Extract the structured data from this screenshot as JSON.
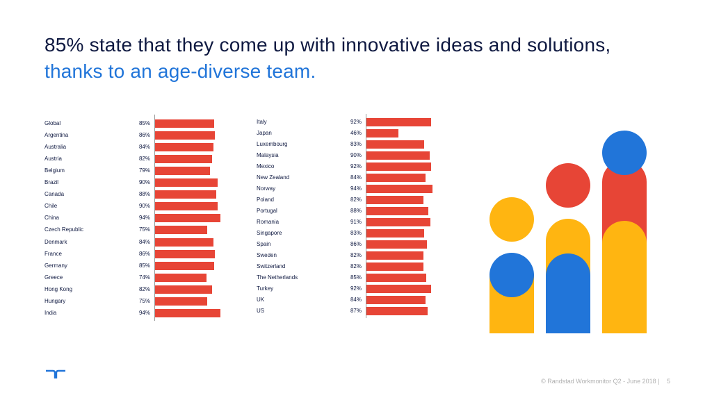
{
  "title": {
    "main": "85% state that they come up with innovative ideas and solutions,",
    "accent": "thanks to an age-diverse team."
  },
  "colors": {
    "bar": "#e74536",
    "title": "#0f1941",
    "accent": "#2175d9",
    "yellow": "#ffb511",
    "red": "#e74536",
    "blue": "#2175d9",
    "footer": "#b0b0b0"
  },
  "chart_data": [
    {
      "type": "bar",
      "orientation": "horizontal",
      "categories": [
        "Global",
        "Argentina",
        "Australia",
        "Austria",
        "Belgium",
        "Brazil",
        "Canada",
        "Chile",
        "China",
        "Czech Republic",
        "Denmark",
        "France",
        "Germany",
        "Greece",
        "Hong Kong",
        "Hungary",
        "India"
      ],
      "values": [
        85,
        86,
        84,
        82,
        79,
        90,
        88,
        90,
        94,
        75,
        84,
        86,
        85,
        74,
        82,
        75,
        94
      ],
      "value_labels": [
        "85%",
        "86%",
        "84%",
        "82%",
        "79%",
        "90%",
        "88%",
        "90%",
        "94%",
        "75%",
        "84%",
        "86%",
        "85%",
        "74%",
        "82%",
        "75%",
        "94%"
      ],
      "xlim": [
        0,
        100
      ]
    },
    {
      "type": "bar",
      "orientation": "horizontal",
      "categories": [
        "Italy",
        "Japan",
        "Luxembourg",
        "Malaysia",
        "Mexico",
        "New Zealand",
        "Norway",
        "Poland",
        "Portugal",
        "Romania",
        "Singapore",
        "Spain",
        "Sweden",
        "Switzerland",
        "The Netherlands",
        "Turkey",
        "UK",
        "US"
      ],
      "values": [
        92,
        46,
        83,
        90,
        92,
        84,
        94,
        82,
        88,
        91,
        83,
        86,
        82,
        82,
        85,
        92,
        84,
        87
      ],
      "value_labels": [
        "92%",
        "46%",
        "83%",
        "90%",
        "92%",
        "84%",
        "94%",
        "82%",
        "88%",
        "91%",
        "83%",
        "86%",
        "82%",
        "82%",
        "85%",
        "92%",
        "84%",
        "87%"
      ],
      "xlim": [
        0,
        100
      ]
    }
  ],
  "illustration": {
    "icon": "age-diverse-people-icon"
  },
  "footer": {
    "logo_icon": "randstad-logo-icon",
    "text": "© Randstad Workmonitor Q2 - June 2018 |",
    "page": "5"
  }
}
